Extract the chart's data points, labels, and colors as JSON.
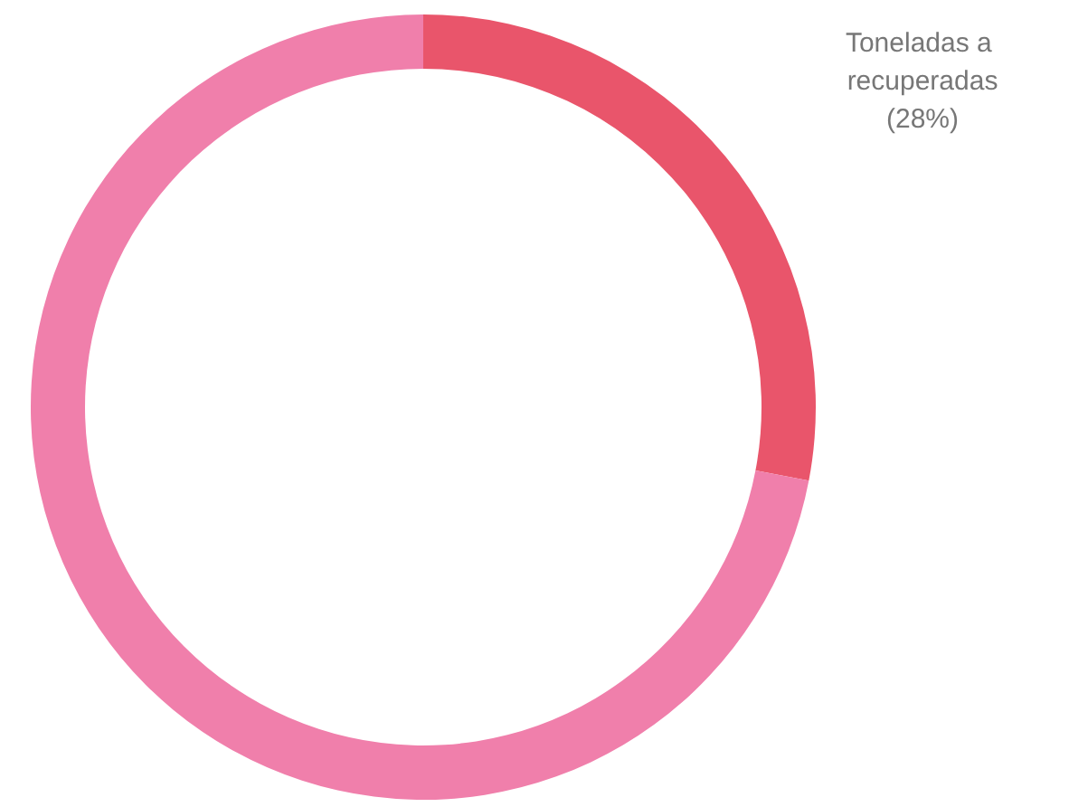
{
  "chart_data": {
    "type": "donut",
    "categories": [
      "Toneladas a recuperadas",
      null
    ],
    "values": [
      28,
      72
    ],
    "colors": [
      "#e9556b",
      "#f07fab"
    ],
    "value_labels": [
      "(28%)",
      null
    ],
    "legend": false
  }
}
